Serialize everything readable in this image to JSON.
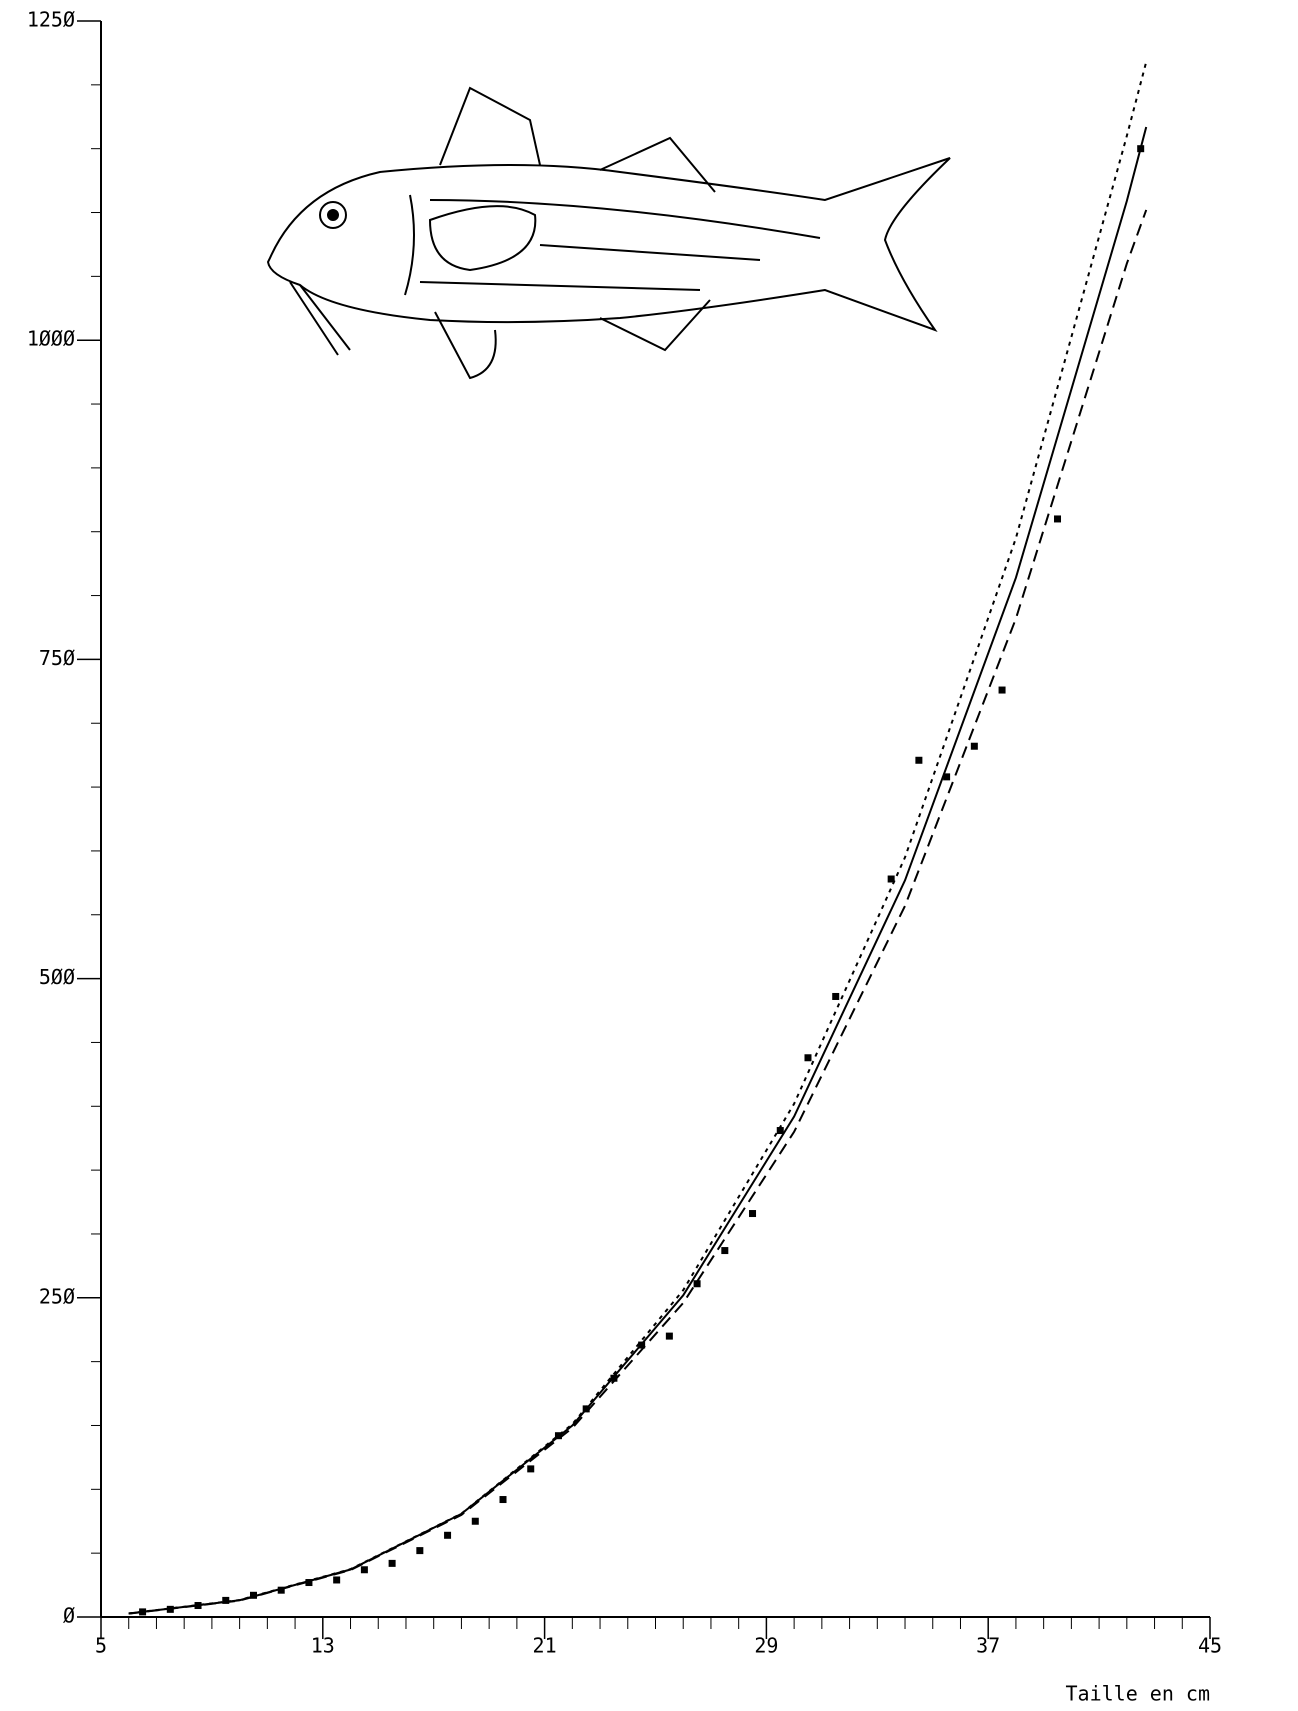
{
  "chart_data": {
    "type": "scatter",
    "x_label": "Taille en cm",
    "xlim": [
      5,
      45
    ],
    "xticks": [
      5,
      13,
      21,
      29,
      37,
      45
    ],
    "ylim": [
      0,
      1250
    ],
    "yticks": [
      {
        "value": 0,
        "label": "Ø"
      },
      {
        "value": 250,
        "label": "25Ø"
      },
      {
        "value": 500,
        "label": "5ØØ"
      },
      {
        "value": 750,
        "label": "75Ø"
      },
      {
        "value": 1000,
        "label": "1ØØØ"
      },
      {
        "value": 1250,
        "label": "125Ø"
      }
    ],
    "x_minor_ticks": [
      6,
      7,
      8,
      9,
      10,
      11,
      12,
      14,
      15,
      16,
      17,
      18,
      19,
      20,
      22,
      23,
      24,
      25,
      26,
      27,
      28,
      30,
      31,
      32,
      33,
      34,
      35,
      36,
      38,
      39,
      40,
      41,
      42,
      43,
      44
    ],
    "y_minor_ticks": [
      50,
      100,
      150,
      200,
      300,
      350,
      400,
      450,
      550,
      600,
      650,
      700,
      800,
      850,
      900,
      950,
      1050,
      1100,
      1150,
      1200
    ],
    "points": {
      "color": "#000",
      "x": [
        6.5,
        7.5,
        8.5,
        9.5,
        10.5,
        11.5,
        12.5,
        13.5,
        14.5,
        15.5,
        16.5,
        17.5,
        18.5,
        19.5,
        20.5,
        21.5,
        22.5,
        23.5,
        24.5,
        25.5,
        26.5,
        27.5,
        28.5,
        29.5,
        30.5,
        31.5,
        33.5,
        34.5,
        35.5,
        36.5,
        37.5,
        39.5,
        42.5
      ],
      "values": [
        4,
        6,
        9,
        13,
        17,
        21,
        27,
        29,
        37,
        42,
        52,
        64,
        75,
        92,
        116,
        142,
        163,
        187,
        213,
        220,
        261,
        287,
        316,
        381,
        438,
        486,
        578,
        671,
        658,
        682,
        726,
        860,
        1150
      ]
    },
    "series": [
      {
        "x": [
          6,
          10,
          14,
          18,
          22,
          26,
          30,
          34,
          38,
          42,
          42.7
        ],
        "values": [
          2.7,
          13.1,
          37.2,
          80.8,
          150,
          252,
          392,
          577,
          814,
          1109,
          1167
        ],
        "color": "#000",
        "style": "solid"
      },
      {
        "x": [
          6,
          10,
          14,
          18,
          22,
          26,
          30,
          34,
          38,
          42,
          42.7
        ],
        "values": [
          2.8,
          13.3,
          37.5,
          81,
          151,
          256,
          402,
          595,
          845,
          1160,
          1218
        ],
        "color": "#000",
        "style": "dotted"
      },
      {
        "x": [
          6,
          10,
          14,
          18,
          22,
          26,
          30,
          34,
          38,
          42,
          42.7
        ],
        "values": [
          2.6,
          12.9,
          36.8,
          80,
          148,
          246,
          380,
          557,
          782,
          1060,
          1102
        ],
        "color": "#000",
        "style": "dashed"
      }
    ]
  }
}
